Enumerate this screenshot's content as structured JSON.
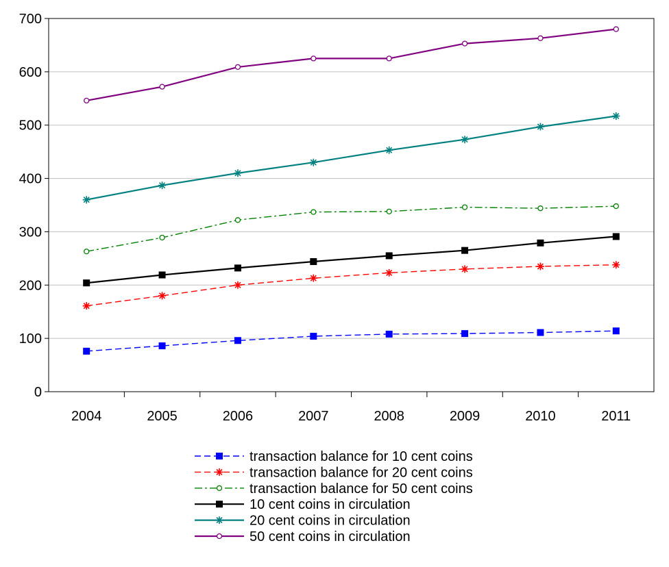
{
  "chart_data": {
    "type": "line",
    "x": [
      "2004",
      "2005",
      "2006",
      "2007",
      "2008",
      "2009",
      "2010",
      "2011"
    ],
    "ylim": [
      0,
      700
    ],
    "yticks": [
      0,
      100,
      200,
      300,
      400,
      500,
      600,
      700
    ],
    "grid": true,
    "legend_position": "bottom",
    "series": [
      {
        "name": "transaction balance for 10 cent coins",
        "color": "#0000ff",
        "line": "dashed",
        "marker": "square-filled",
        "values": [
          76,
          86,
          96,
          104,
          108,
          109,
          111,
          114
        ]
      },
      {
        "name": "transaction balance for 20 cent coins",
        "color": "#ff0000",
        "line": "dashed",
        "marker": "asterisk",
        "values": [
          161,
          180,
          200,
          213,
          223,
          230,
          235,
          238
        ]
      },
      {
        "name": "transaction balance for 50 cent coins",
        "color": "#008000",
        "line": "dashdot",
        "marker": "circle-open",
        "values": [
          263,
          289,
          322,
          337,
          338,
          346,
          344,
          348
        ]
      },
      {
        "name": "10 cent coins in circulation",
        "color": "#000000",
        "line": "solid",
        "marker": "square-filled",
        "values": [
          204,
          219,
          232,
          244,
          255,
          265,
          279,
          291
        ]
      },
      {
        "name": "20 cent coins in circulation",
        "color": "#008080",
        "line": "solid",
        "marker": "asterisk",
        "values": [
          360,
          387,
          410,
          430,
          453,
          473,
          497,
          517
        ]
      },
      {
        "name": "50 cent coins in circulation",
        "color": "#800080",
        "line": "solid",
        "marker": "circle-open",
        "values": [
          546,
          572,
          609,
          625,
          625,
          653,
          663,
          680
        ]
      }
    ]
  }
}
